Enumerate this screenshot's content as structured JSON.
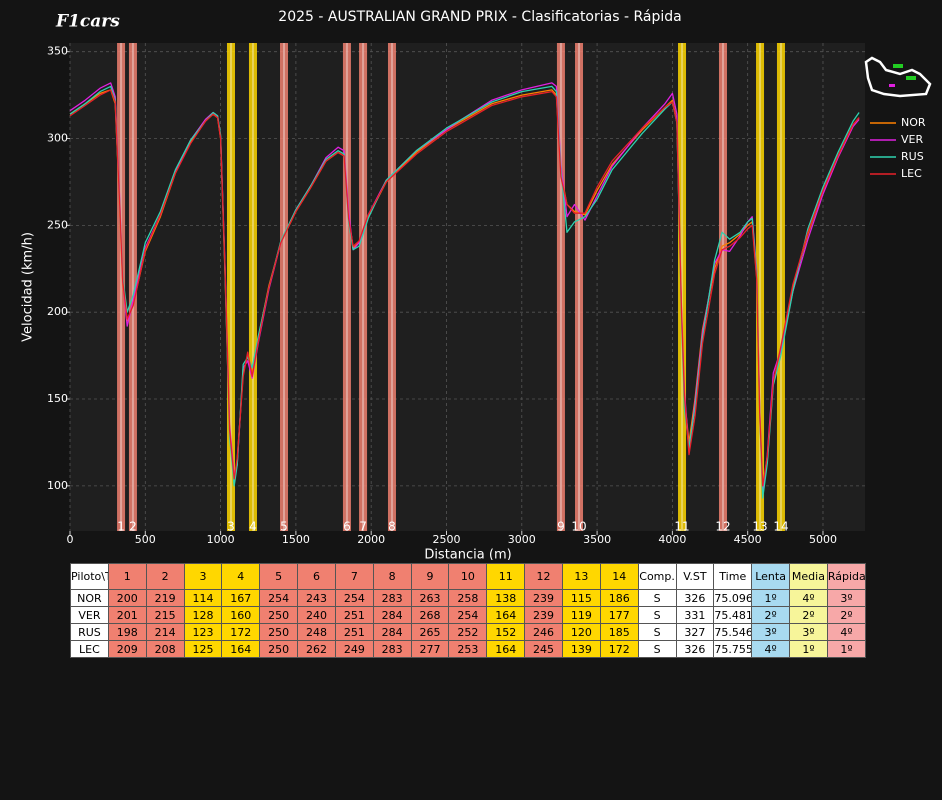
{
  "logo": "F1cars",
  "chart_data": {
    "type": "line",
    "title": "2025 - AUSTRALIAN GRAND PRIX - Clasificatorias - Rápida",
    "x_label": "Distancia (m)",
    "y_label": "Velocidad (km/h)",
    "x": [
      0,
      100,
      200,
      270,
      300,
      330,
      350,
      380,
      420,
      500,
      600,
      700,
      800,
      900,
      950,
      980,
      1000,
      1030,
      1060,
      1090,
      1110,
      1150,
      1180,
      1210,
      1250,
      1320,
      1400,
      1500,
      1600,
      1700,
      1780,
      1820,
      1850,
      1880,
      1920,
      1980,
      2100,
      2300,
      2500,
      2600,
      2800,
      3000,
      3200,
      3230,
      3260,
      3300,
      3350,
      3420,
      3500,
      3600,
      3800,
      3950,
      4000,
      4030,
      4060,
      4080,
      4110,
      4150,
      4200,
      4280,
      4330,
      4380,
      4450,
      4500,
      4530,
      4560,
      4580,
      4600,
      4630,
      4670,
      4720,
      4800,
      4900,
      5000,
      5100,
      5200,
      5240
    ],
    "series": [
      {
        "name": "NOR",
        "color": "#ff8000",
        "values": [
          314,
          320,
          326,
          328,
          320,
          260,
          215,
          195,
          205,
          235,
          255,
          280,
          298,
          310,
          314,
          312,
          300,
          220,
          130,
          104,
          115,
          165,
          175,
          165,
          185,
          215,
          240,
          258,
          272,
          287,
          292,
          290,
          255,
          237,
          240,
          255,
          275,
          292,
          305,
          310,
          320,
          325,
          328,
          325,
          280,
          262,
          258,
          256,
          270,
          285,
          305,
          318,
          322,
          310,
          200,
          150,
          125,
          150,
          190,
          225,
          238,
          240,
          245,
          250,
          252,
          220,
          140,
          98,
          115,
          160,
          178,
          215,
          245,
          270,
          290,
          308,
          312
        ]
      },
      {
        "name": "VER",
        "color": "#e020e0",
        "values": [
          316,
          322,
          329,
          332,
          324,
          265,
          218,
          192,
          207,
          237,
          256,
          281,
          299,
          311,
          315,
          313,
          301,
          225,
          135,
          106,
          112,
          168,
          172,
          162,
          182,
          213,
          240,
          259,
          273,
          289,
          295,
          293,
          258,
          236,
          240,
          256,
          276,
          293,
          305,
          311,
          322,
          328,
          332,
          330,
          285,
          255,
          262,
          253,
          267,
          284,
          306,
          320,
          326,
          314,
          205,
          155,
          120,
          148,
          188,
          228,
          236,
          235,
          244,
          252,
          255,
          224,
          145,
          96,
          118,
          165,
          178,
          212,
          242,
          268,
          289,
          307,
          311
        ]
      },
      {
        "name": "RUS",
        "color": "#2ed3b0",
        "values": [
          314,
          320,
          327,
          330,
          322,
          262,
          220,
          200,
          210,
          240,
          258,
          282,
          299,
          310,
          315,
          313,
          302,
          222,
          128,
          100,
          112,
          170,
          174,
          168,
          186,
          214,
          241,
          259,
          273,
          288,
          293,
          291,
          252,
          236,
          238,
          254,
          276,
          293,
          306,
          311,
          321,
          327,
          330,
          327,
          282,
          246,
          252,
          255,
          265,
          282,
          303,
          317,
          321,
          309,
          198,
          145,
          122,
          145,
          185,
          230,
          246,
          242,
          246,
          252,
          254,
          222,
          142,
          93,
          113,
          158,
          175,
          212,
          248,
          272,
          292,
          310,
          315
        ]
      },
      {
        "name": "LEC",
        "color": "#e8202a",
        "values": [
          313,
          319,
          325,
          328,
          321,
          262,
          218,
          196,
          204,
          236,
          256,
          280,
          297,
          310,
          314,
          312,
          300,
          224,
          132,
          104,
          116,
          163,
          177,
          163,
          183,
          214,
          240,
          258,
          272,
          287,
          292,
          290,
          254,
          238,
          241,
          256,
          275,
          291,
          304,
          309,
          319,
          324,
          327,
          324,
          278,
          262,
          257,
          257,
          272,
          287,
          306,
          318,
          321,
          309,
          202,
          152,
          118,
          140,
          182,
          222,
          236,
          238,
          243,
          248,
          250,
          219,
          142,
          100,
          117,
          160,
          180,
          216,
          246,
          270,
          290,
          308,
          312
        ]
      }
    ],
    "xlim": [
      0,
      5279
    ],
    "ylim": [
      74,
      355
    ],
    "xticks": [
      0,
      500,
      1000,
      1500,
      2000,
      2500,
      3000,
      3500,
      4000,
      4500,
      5000
    ],
    "yticks": [
      100,
      150,
      200,
      250,
      300,
      350
    ],
    "grid": true,
    "legend": "right",
    "corners": {
      "labels": [
        "1",
        "2",
        "3",
        "4",
        "5",
        "6",
        "7",
        "8",
        "9",
        "10",
        "11",
        "12",
        "13",
        "14"
      ],
      "distances": [
        339,
        418,
        1069,
        1215,
        1421,
        1839,
        1946,
        2138,
        3260,
        3380,
        4064,
        4336,
        4582,
        4721
      ],
      "colors": [
        "#f08070",
        "#f08070",
        "#ffd700",
        "#ffd700",
        "#f08070",
        "#f08070",
        "#f08070",
        "#f08070",
        "#f08070",
        "#f08070",
        "#ffd700",
        "#f08070",
        "#ffd700",
        "#ffd700"
      ]
    }
  },
  "table": {
    "header": [
      "Piloto\\T",
      "1",
      "2",
      "3",
      "4",
      "5",
      "6",
      "7",
      "8",
      "9",
      "10",
      "11",
      "12",
      "13",
      "14",
      "Comp.",
      "V.ST",
      "Time",
      "Lenta",
      "Media",
      "Rápida"
    ],
    "rows": [
      [
        "NOR",
        200,
        219,
        114,
        167,
        254,
        243,
        254,
        283,
        263,
        258,
        138,
        239,
        115,
        186,
        "S",
        326,
        75.096,
        "1º",
        "4º",
        "3º"
      ],
      [
        "VER",
        201,
        215,
        128,
        160,
        250,
        240,
        251,
        284,
        268,
        254,
        164,
        239,
        119,
        177,
        "S",
        331,
        75.481,
        "2º",
        "2º",
        "2º"
      ],
      [
        "RUS",
        198,
        214,
        123,
        172,
        250,
        248,
        251,
        284,
        265,
        252,
        152,
        246,
        120,
        185,
        "S",
        327,
        75.546,
        "3º",
        "3º",
        "4º"
      ],
      [
        "LEC",
        209,
        208,
        125,
        164,
        250,
        262,
        249,
        283,
        277,
        253,
        164,
        245,
        139,
        172,
        "S",
        326,
        75.755,
        "4º",
        "1º",
        "1º"
      ]
    ]
  }
}
